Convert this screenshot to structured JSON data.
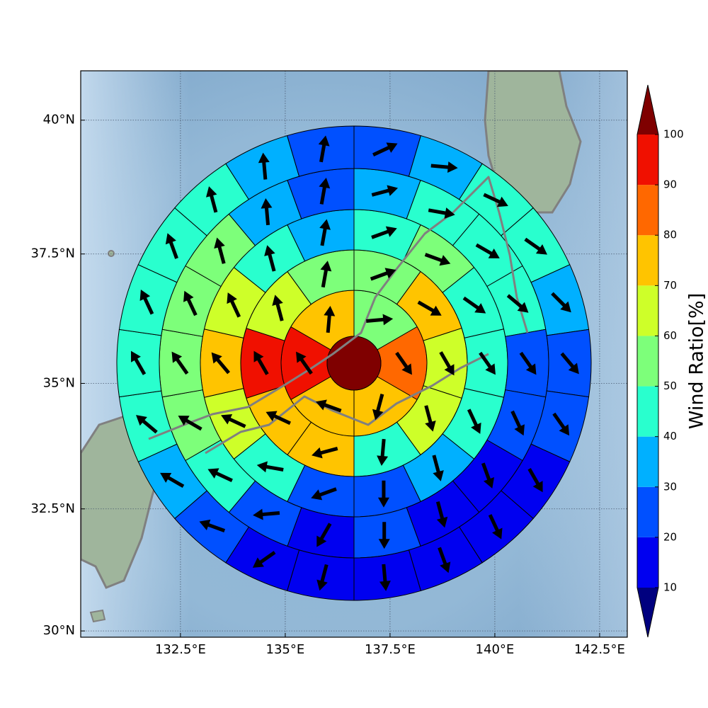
{
  "chart_data": {
    "type": "polar_sectors",
    "projection": "mercator",
    "grid": true,
    "xlim": [
      130.12,
      143.16
    ],
    "ylim": [
      29.87,
      40.9
    ],
    "xticks": [
      {
        "value": 132.5,
        "label": "132.5°E"
      },
      {
        "value": 135,
        "label": "135°E"
      },
      {
        "value": 137.5,
        "label": "137.5°E"
      },
      {
        "value": 140,
        "label": "140°E"
      },
      {
        "value": 142.5,
        "label": "142.5°E"
      }
    ],
    "yticks": [
      {
        "value": 30,
        "label": "30°N"
      },
      {
        "value": 32.5,
        "label": "32.5°N"
      },
      {
        "value": 35,
        "label": "35°N"
      },
      {
        "value": 37.5,
        "label": "37.5°N"
      },
      {
        "value": 40,
        "label": "40°N"
      }
    ],
    "center": {
      "value": 100
    },
    "rings": [
      {
        "values": [
          55,
          85,
          75,
          75,
          95,
          75
        ],
        "directions": [
          85,
          145,
          195,
          290,
          325,
          5
        ]
      },
      {
        "values": [
          55,
          75,
          65,
          65,
          45,
          75,
          75,
          95,
          65,
          55
        ],
        "directions": [
          70,
          120,
          150,
          165,
          185,
          255,
          295,
          330,
          345,
          10
        ]
      },
      {
        "values": [
          45,
          55,
          45,
          45,
          45,
          35,
          25,
          25,
          45,
          65,
          75,
          65,
          45,
          35
        ],
        "directions": [
          70,
          110,
          125,
          145,
          155,
          165,
          180,
          250,
          280,
          295,
          320,
          335,
          345,
          10
        ]
      },
      {
        "values": [
          35,
          45,
          45,
          45,
          25,
          25,
          15,
          15,
          25,
          15,
          25,
          45,
          55,
          55,
          55,
          55,
          35,
          25
        ],
        "directions": [
          75,
          100,
          120,
          130,
          145,
          155,
          160,
          165,
          180,
          210,
          265,
          295,
          300,
          325,
          335,
          345,
          355,
          10
        ]
      },
      {
        "values": [
          25,
          35,
          45,
          45,
          35,
          25,
          25,
          15,
          15,
          15,
          15,
          15,
          15,
          25,
          35,
          45,
          45,
          45,
          45,
          45,
          35,
          25
        ],
        "directions": [
          65,
          95,
          115,
          125,
          135,
          140,
          145,
          150,
          155,
          160,
          175,
          195,
          235,
          290,
          300,
          310,
          330,
          335,
          340,
          345,
          355,
          10
        ]
      }
    ],
    "colorbar": {
      "label": "Wind Ratio[%]",
      "ticks": [
        10,
        20,
        30,
        40,
        50,
        60,
        70,
        80,
        90,
        100
      ],
      "colors": [
        "#00007f",
        "#0000f0",
        "#0050ff",
        "#00b0ff",
        "#29ffce",
        "#7dff7a",
        "#ceff29",
        "#ffc400",
        "#ff6800",
        "#f01000",
        "#7f0000"
      ],
      "extend": "both"
    }
  }
}
